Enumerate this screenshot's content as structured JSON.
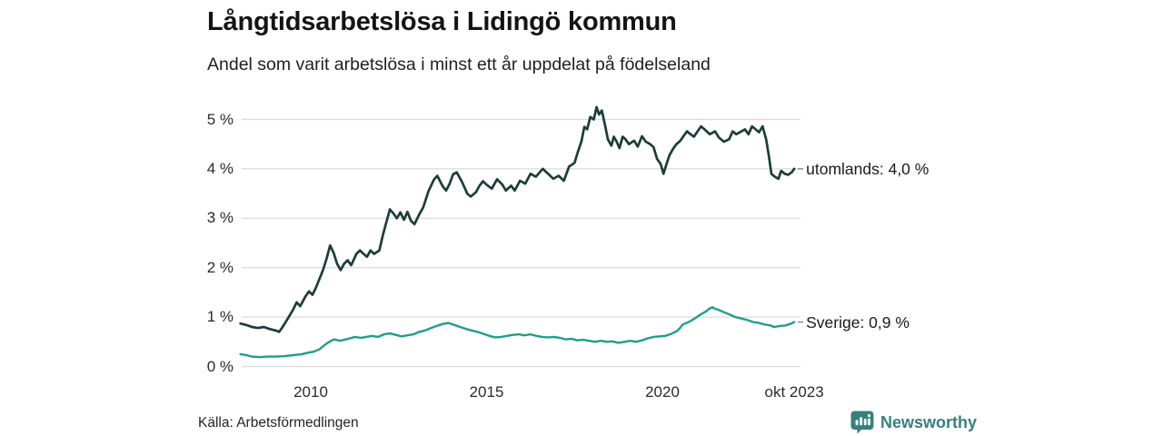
{
  "header": {
    "title": "Långtidsarbetslösa i Lidingö kommun",
    "subtitle": "Andel som varit arbetslösa i minst ett år uppdelat på födelseland"
  },
  "footer": {
    "source": "Källa: Arbetsförmedlingen",
    "brand": "Newsworthy"
  },
  "colors": {
    "background": "#ffffff",
    "gridline": "#dcdcdc",
    "tick_text": "#2b2b2b",
    "label_text": "#1a1a1a",
    "connector": "#8a8a8a",
    "brand_teal": "#37807d",
    "series_utomlands": "#1d3d3a",
    "series_sverige": "#1f9e8a"
  },
  "chart_data": {
    "type": "line",
    "title": "Långtidsarbetslösa i Lidingö kommun",
    "subtitle": "Andel som varit arbetslösa i minst ett år uppdelat på födelseland",
    "source": "Källa: Arbetsförmedlingen",
    "grid": "horizontal-only",
    "legend_position": "right-end-labels",
    "xlabel": "",
    "ylabel": "",
    "x_range": [
      2008.0,
      2023.79
    ],
    "ylim": [
      0,
      5.5
    ],
    "y_axis": {
      "ticks": [
        0,
        1,
        2,
        3,
        4,
        5
      ],
      "suffix": " %"
    },
    "x_axis": {
      "ticks": [
        {
          "year": 2010.0,
          "label": "2010"
        },
        {
          "year": 2015.0,
          "label": "2015"
        },
        {
          "year": 2020.0,
          "label": "2020"
        },
        {
          "year": 2023.75,
          "label": "okt 2023"
        }
      ]
    },
    "series": [
      {
        "name": "utomlands",
        "end_label": "utomlands: 4,0 %",
        "latest_value": "4,0 %",
        "color": "#1d3d3a",
        "stroke_width": 2.7,
        "points": [
          [
            2008.0,
            0.87
          ],
          [
            2008.17,
            0.84
          ],
          [
            2008.33,
            0.8
          ],
          [
            2008.5,
            0.78
          ],
          [
            2008.67,
            0.8
          ],
          [
            2008.83,
            0.76
          ],
          [
            2009.0,
            0.73
          ],
          [
            2009.1,
            0.7
          ],
          [
            2009.2,
            0.8
          ],
          [
            2009.33,
            0.95
          ],
          [
            2009.5,
            1.15
          ],
          [
            2009.6,
            1.3
          ],
          [
            2009.7,
            1.22
          ],
          [
            2009.85,
            1.42
          ],
          [
            2009.95,
            1.52
          ],
          [
            2010.05,
            1.45
          ],
          [
            2010.15,
            1.6
          ],
          [
            2010.25,
            1.78
          ],
          [
            2010.35,
            1.95
          ],
          [
            2010.45,
            2.18
          ],
          [
            2010.55,
            2.45
          ],
          [
            2010.65,
            2.3
          ],
          [
            2010.75,
            2.08
          ],
          [
            2010.85,
            1.95
          ],
          [
            2010.95,
            2.08
          ],
          [
            2011.05,
            2.15
          ],
          [
            2011.15,
            2.05
          ],
          [
            2011.3,
            2.28
          ],
          [
            2011.4,
            2.35
          ],
          [
            2011.5,
            2.28
          ],
          [
            2011.6,
            2.22
          ],
          [
            2011.7,
            2.35
          ],
          [
            2011.8,
            2.28
          ],
          [
            2011.95,
            2.35
          ],
          [
            2012.05,
            2.65
          ],
          [
            2012.15,
            2.92
          ],
          [
            2012.25,
            3.18
          ],
          [
            2012.35,
            3.1
          ],
          [
            2012.45,
            3.0
          ],
          [
            2012.55,
            3.12
          ],
          [
            2012.65,
            2.97
          ],
          [
            2012.75,
            3.13
          ],
          [
            2012.85,
            2.95
          ],
          [
            2012.95,
            2.88
          ],
          [
            2013.1,
            3.1
          ],
          [
            2013.2,
            3.22
          ],
          [
            2013.35,
            3.55
          ],
          [
            2013.5,
            3.78
          ],
          [
            2013.6,
            3.86
          ],
          [
            2013.75,
            3.65
          ],
          [
            2013.85,
            3.56
          ],
          [
            2013.95,
            3.7
          ],
          [
            2014.05,
            3.89
          ],
          [
            2014.15,
            3.93
          ],
          [
            2014.3,
            3.74
          ],
          [
            2014.45,
            3.5
          ],
          [
            2014.55,
            3.44
          ],
          [
            2014.7,
            3.53
          ],
          [
            2014.8,
            3.66
          ],
          [
            2014.9,
            3.75
          ],
          [
            2015.0,
            3.68
          ],
          [
            2015.15,
            3.6
          ],
          [
            2015.3,
            3.79
          ],
          [
            2015.45,
            3.68
          ],
          [
            2015.55,
            3.56
          ],
          [
            2015.7,
            3.66
          ],
          [
            2015.8,
            3.56
          ],
          [
            2015.95,
            3.76
          ],
          [
            2016.1,
            3.7
          ],
          [
            2016.25,
            3.9
          ],
          [
            2016.4,
            3.84
          ],
          [
            2016.6,
            4.0
          ],
          [
            2016.75,
            3.9
          ],
          [
            2016.9,
            3.8
          ],
          [
            2017.05,
            3.86
          ],
          [
            2017.2,
            3.76
          ],
          [
            2017.35,
            4.05
          ],
          [
            2017.5,
            4.12
          ],
          [
            2017.6,
            4.35
          ],
          [
            2017.7,
            4.56
          ],
          [
            2017.78,
            4.85
          ],
          [
            2017.86,
            4.8
          ],
          [
            2017.95,
            5.05
          ],
          [
            2018.05,
            5.0
          ],
          [
            2018.13,
            5.25
          ],
          [
            2018.2,
            5.1
          ],
          [
            2018.28,
            5.18
          ],
          [
            2018.38,
            4.85
          ],
          [
            2018.45,
            4.6
          ],
          [
            2018.55,
            4.47
          ],
          [
            2018.62,
            4.65
          ],
          [
            2018.7,
            4.55
          ],
          [
            2018.78,
            4.42
          ],
          [
            2018.87,
            4.65
          ],
          [
            2018.95,
            4.6
          ],
          [
            2019.05,
            4.5
          ],
          [
            2019.2,
            4.57
          ],
          [
            2019.3,
            4.45
          ],
          [
            2019.42,
            4.66
          ],
          [
            2019.53,
            4.55
          ],
          [
            2019.65,
            4.5
          ],
          [
            2019.75,
            4.44
          ],
          [
            2019.85,
            4.2
          ],
          [
            2019.95,
            4.1
          ],
          [
            2020.03,
            3.9
          ],
          [
            2020.12,
            4.1
          ],
          [
            2020.2,
            4.27
          ],
          [
            2020.3,
            4.4
          ],
          [
            2020.4,
            4.5
          ],
          [
            2020.5,
            4.56
          ],
          [
            2020.6,
            4.66
          ],
          [
            2020.7,
            4.76
          ],
          [
            2020.8,
            4.7
          ],
          [
            2020.9,
            4.65
          ],
          [
            2021.0,
            4.76
          ],
          [
            2021.1,
            4.86
          ],
          [
            2021.2,
            4.8
          ],
          [
            2021.35,
            4.7
          ],
          [
            2021.5,
            4.76
          ],
          [
            2021.6,
            4.64
          ],
          [
            2021.75,
            4.55
          ],
          [
            2021.9,
            4.6
          ],
          [
            2022.0,
            4.76
          ],
          [
            2022.1,
            4.7
          ],
          [
            2022.25,
            4.76
          ],
          [
            2022.35,
            4.8
          ],
          [
            2022.45,
            4.7
          ],
          [
            2022.55,
            4.86
          ],
          [
            2022.65,
            4.8
          ],
          [
            2022.75,
            4.74
          ],
          [
            2022.85,
            4.86
          ],
          [
            2022.95,
            4.6
          ],
          [
            2023.03,
            4.25
          ],
          [
            2023.1,
            3.9
          ],
          [
            2023.2,
            3.84
          ],
          [
            2023.3,
            3.8
          ],
          [
            2023.38,
            3.96
          ],
          [
            2023.48,
            3.9
          ],
          [
            2023.58,
            3.88
          ],
          [
            2023.68,
            3.93
          ],
          [
            2023.75,
            4.0
          ]
        ]
      },
      {
        "name": "Sverige",
        "end_label": "Sverige: 0,9 %",
        "latest_value": "0,9 %",
        "color": "#1f9e8a",
        "stroke_width": 2.4,
        "points": [
          [
            2008.0,
            0.25
          ],
          [
            2008.17,
            0.23
          ],
          [
            2008.33,
            0.2
          ],
          [
            2008.58,
            0.19
          ],
          [
            2008.75,
            0.2
          ],
          [
            2009.0,
            0.2
          ],
          [
            2009.25,
            0.21
          ],
          [
            2009.5,
            0.23
          ],
          [
            2009.75,
            0.25
          ],
          [
            2009.92,
            0.28
          ],
          [
            2010.08,
            0.3
          ],
          [
            2010.25,
            0.35
          ],
          [
            2010.42,
            0.45
          ],
          [
            2010.58,
            0.52
          ],
          [
            2010.67,
            0.55
          ],
          [
            2010.83,
            0.52
          ],
          [
            2011.0,
            0.55
          ],
          [
            2011.17,
            0.58
          ],
          [
            2011.25,
            0.6
          ],
          [
            2011.42,
            0.58
          ],
          [
            2011.58,
            0.6
          ],
          [
            2011.75,
            0.62
          ],
          [
            2011.92,
            0.6
          ],
          [
            2012.08,
            0.65
          ],
          [
            2012.25,
            0.67
          ],
          [
            2012.42,
            0.64
          ],
          [
            2012.58,
            0.61
          ],
          [
            2012.75,
            0.63
          ],
          [
            2012.92,
            0.65
          ],
          [
            2013.08,
            0.7
          ],
          [
            2013.25,
            0.73
          ],
          [
            2013.42,
            0.78
          ],
          [
            2013.58,
            0.82
          ],
          [
            2013.75,
            0.86
          ],
          [
            2013.92,
            0.88
          ],
          [
            2014.08,
            0.84
          ],
          [
            2014.25,
            0.8
          ],
          [
            2014.42,
            0.76
          ],
          [
            2014.58,
            0.73
          ],
          [
            2014.75,
            0.7
          ],
          [
            2014.92,
            0.66
          ],
          [
            2015.08,
            0.62
          ],
          [
            2015.25,
            0.59
          ],
          [
            2015.42,
            0.6
          ],
          [
            2015.58,
            0.62
          ],
          [
            2015.75,
            0.64
          ],
          [
            2015.92,
            0.65
          ],
          [
            2016.08,
            0.63
          ],
          [
            2016.25,
            0.65
          ],
          [
            2016.42,
            0.62
          ],
          [
            2016.58,
            0.6
          ],
          [
            2016.75,
            0.59
          ],
          [
            2016.92,
            0.6
          ],
          [
            2017.08,
            0.58
          ],
          [
            2017.25,
            0.55
          ],
          [
            2017.42,
            0.56
          ],
          [
            2017.58,
            0.53
          ],
          [
            2017.75,
            0.54
          ],
          [
            2017.92,
            0.52
          ],
          [
            2018.08,
            0.5
          ],
          [
            2018.25,
            0.52
          ],
          [
            2018.42,
            0.5
          ],
          [
            2018.58,
            0.51
          ],
          [
            2018.75,
            0.48
          ],
          [
            2018.92,
            0.5
          ],
          [
            2019.08,
            0.52
          ],
          [
            2019.25,
            0.5
          ],
          [
            2019.42,
            0.53
          ],
          [
            2019.58,
            0.57
          ],
          [
            2019.75,
            0.6
          ],
          [
            2019.92,
            0.61
          ],
          [
            2020.08,
            0.62
          ],
          [
            2020.25,
            0.66
          ],
          [
            2020.42,
            0.72
          ],
          [
            2020.5,
            0.78
          ],
          [
            2020.58,
            0.85
          ],
          [
            2020.75,
            0.9
          ],
          [
            2020.92,
            0.97
          ],
          [
            2021.08,
            1.05
          ],
          [
            2021.25,
            1.12
          ],
          [
            2021.33,
            1.17
          ],
          [
            2021.42,
            1.2
          ],
          [
            2021.5,
            1.17
          ],
          [
            2021.58,
            1.15
          ],
          [
            2021.75,
            1.1
          ],
          [
            2021.92,
            1.05
          ],
          [
            2022.08,
            1.0
          ],
          [
            2022.25,
            0.97
          ],
          [
            2022.42,
            0.94
          ],
          [
            2022.58,
            0.9
          ],
          [
            2022.75,
            0.88
          ],
          [
            2022.92,
            0.85
          ],
          [
            2023.08,
            0.83
          ],
          [
            2023.17,
            0.8
          ],
          [
            2023.33,
            0.82
          ],
          [
            2023.5,
            0.83
          ],
          [
            2023.58,
            0.85
          ],
          [
            2023.67,
            0.87
          ],
          [
            2023.75,
            0.9
          ]
        ]
      }
    ]
  }
}
